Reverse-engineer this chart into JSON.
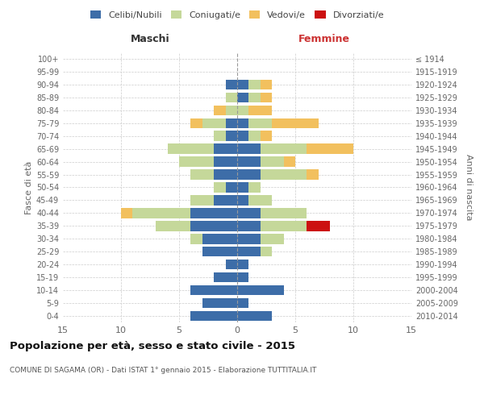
{
  "age_groups": [
    "0-4",
    "5-9",
    "10-14",
    "15-19",
    "20-24",
    "25-29",
    "30-34",
    "35-39",
    "40-44",
    "45-49",
    "50-54",
    "55-59",
    "60-64",
    "65-69",
    "70-74",
    "75-79",
    "80-84",
    "85-89",
    "90-94",
    "95-99",
    "100+"
  ],
  "birth_years": [
    "2010-2014",
    "2005-2009",
    "2000-2004",
    "1995-1999",
    "1990-1994",
    "1985-1989",
    "1980-1984",
    "1975-1979",
    "1970-1974",
    "1965-1969",
    "1960-1964",
    "1955-1959",
    "1950-1954",
    "1945-1949",
    "1940-1944",
    "1935-1939",
    "1930-1934",
    "1925-1929",
    "1920-1924",
    "1915-1919",
    "≤ 1914"
  ],
  "males": {
    "celibi": [
      4,
      3,
      4,
      2,
      1,
      3,
      3,
      4,
      4,
      2,
      1,
      2,
      2,
      2,
      1,
      1,
      0,
      0,
      1,
      0,
      0
    ],
    "coniugati": [
      0,
      0,
      0,
      0,
      0,
      0,
      1,
      3,
      5,
      2,
      1,
      2,
      3,
      4,
      1,
      2,
      1,
      1,
      0,
      0,
      0
    ],
    "vedovi": [
      0,
      0,
      0,
      0,
      0,
      0,
      0,
      0,
      1,
      0,
      0,
      0,
      0,
      0,
      0,
      1,
      1,
      0,
      0,
      0,
      0
    ],
    "divorziati": [
      0,
      0,
      0,
      0,
      0,
      0,
      0,
      0,
      0,
      0,
      0,
      0,
      0,
      0,
      0,
      0,
      0,
      0,
      0,
      0,
      0
    ]
  },
  "females": {
    "nubili": [
      3,
      1,
      4,
      1,
      1,
      2,
      2,
      2,
      2,
      1,
      1,
      2,
      2,
      2,
      1,
      1,
      0,
      1,
      1,
      0,
      0
    ],
    "coniugate": [
      0,
      0,
      0,
      0,
      0,
      1,
      2,
      4,
      4,
      2,
      1,
      4,
      2,
      4,
      1,
      2,
      1,
      1,
      1,
      0,
      0
    ],
    "vedove": [
      0,
      0,
      0,
      0,
      0,
      0,
      0,
      0,
      0,
      0,
      0,
      1,
      1,
      4,
      1,
      4,
      2,
      1,
      1,
      0,
      0
    ],
    "divorziate": [
      0,
      0,
      0,
      0,
      0,
      0,
      0,
      2,
      0,
      0,
      0,
      0,
      0,
      0,
      0,
      0,
      0,
      0,
      0,
      0,
      0
    ]
  },
  "colors": {
    "celibi_nubili": "#3d6da8",
    "coniugati": "#c5d89a",
    "vedovi": "#f2c05e",
    "divorziati": "#cc1111"
  },
  "title": "Popolazione per età, sesso e stato civile - 2015",
  "subtitle": "COMUNE DI SAGAMA (OR) - Dati ISTAT 1° gennaio 2015 - Elaborazione TUTTITALIA.IT",
  "xlabel_left": "Maschi",
  "xlabel_right": "Femmine",
  "ylabel_left": "Fasce di età",
  "ylabel_right": "Anni di nascita",
  "xlim": 15,
  "legend_labels": [
    "Celibi/Nubili",
    "Coniugati/e",
    "Vedovi/e",
    "Divorziati/e"
  ],
  "background_color": "#ffffff",
  "grid_color": "#cccccc"
}
